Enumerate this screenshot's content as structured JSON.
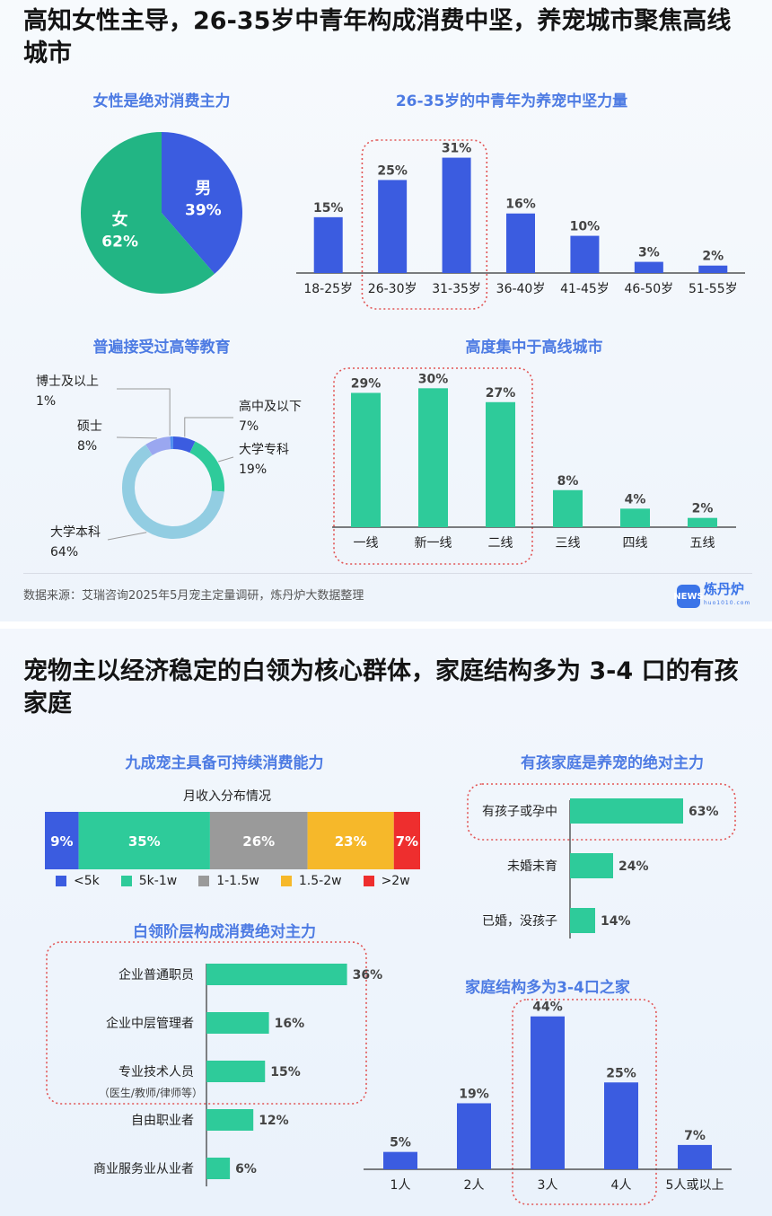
{
  "source": "数据来源：艾瑞咨询2025年5月宠主定量调研，炼丹炉大数据整理",
  "logo": {
    "text": "炼丹炉",
    "sub": "huo1010.com",
    "mark": "NEWS"
  },
  "colors": {
    "blue": "#3b5ce0",
    "green": "#2ecb9a",
    "gray": "#9a9a9a",
    "orange": "#f6b82a",
    "red": "#ee2e2e",
    "pie_green": "#22b584",
    "ring_light": "#92cde2",
    "ring_purple": "#9aa7f0",
    "accent": "#4d7be3",
    "highlight": "#e25555"
  },
  "panel1": {
    "title": "高知女性主导，26-35岁中青年构成消费中坚，养宠城市聚焦高线城市",
    "gender_title": "女性是绝对消费主力",
    "age_title": "26-35岁的中青年为养宠中坚力量",
    "edu_title": "普遍接受过高等教育",
    "city_title": "高度集中于高线城市"
  },
  "panel2": {
    "title": "宠物主以经济稳定的白领为核心群体，家庭结构多为 3-4 口的有孩家庭",
    "income_title": "九成宠主具备可持续消费能力",
    "income_subtitle": "月收入分布情况",
    "occupation_title": "白领阶层构成消费绝对主力",
    "kids_title": "有孩家庭是养宠的绝对主力",
    "family_title": "家庭结构多为3-4口之家"
  },
  "chart_data": [
    {
      "id": "gender",
      "type": "pie",
      "title": "女性是绝对消费主力",
      "slices": [
        {
          "label": "男",
          "value": 39,
          "text": "39%"
        },
        {
          "label": "女",
          "value": 62,
          "text": "62%"
        }
      ]
    },
    {
      "id": "age",
      "type": "bar",
      "title": "26-35岁的中青年为养宠中坚力量",
      "categories": [
        "18-25岁",
        "26-30岁",
        "31-35岁",
        "36-40岁",
        "41-45岁",
        "46-50岁",
        "51-55岁"
      ],
      "values": [
        15,
        25,
        31,
        16,
        10,
        3,
        2
      ],
      "labels": [
        "15%",
        "25%",
        "31%",
        "16%",
        "10%",
        "3%",
        "2%"
      ],
      "highlight": [
        1,
        2
      ],
      "ylim": [
        0,
        35
      ]
    },
    {
      "id": "education",
      "type": "pie",
      "title": "普遍接受过高等教育",
      "slices": [
        {
          "label": "高中及以下",
          "value": 7,
          "text": "7%"
        },
        {
          "label": "大学专科",
          "value": 19,
          "text": "19%"
        },
        {
          "label": "大学本科",
          "value": 64,
          "text": "64%"
        },
        {
          "label": "硕士",
          "value": 8,
          "text": "8%"
        },
        {
          "label": "博士及以上",
          "value": 1,
          "text": "1%"
        }
      ]
    },
    {
      "id": "city",
      "type": "bar",
      "title": "高度集中于高线城市",
      "categories": [
        "一线",
        "新一线",
        "二线",
        "三线",
        "四线",
        "五线"
      ],
      "values": [
        29,
        30,
        27,
        8,
        4,
        2
      ],
      "labels": [
        "29%",
        "30%",
        "27%",
        "8%",
        "4%",
        "2%"
      ],
      "highlight": [
        0,
        1,
        2
      ],
      "ylim": [
        0,
        32
      ]
    },
    {
      "id": "income",
      "type": "bar",
      "orientation": "stacked-horizontal",
      "title": "九成宠主具备可持续消费能力",
      "subtitle": "月收入分布情况",
      "categories": [
        "<5k",
        "5k-1w",
        "1-1.5w",
        "1.5-2w",
        ">2w"
      ],
      "values": [
        9,
        35,
        26,
        23,
        7
      ],
      "labels": [
        "9%",
        "35%",
        "26%",
        "23%",
        "7%"
      ]
    },
    {
      "id": "occupation",
      "type": "bar",
      "orientation": "horizontal",
      "title": "白领阶层构成消费绝对主力",
      "categories": [
        "企业普通职员",
        "企业中层管理者",
        "专业技术人员",
        "自由职业者",
        "商业服务业从业者"
      ],
      "note": "（医生/教师/律师等）",
      "values": [
        36,
        16,
        15,
        12,
        6
      ],
      "labels": [
        "36%",
        "16%",
        "15%",
        "12%",
        "6%"
      ],
      "highlight": [
        0,
        1,
        2
      ],
      "xlim": [
        0,
        40
      ]
    },
    {
      "id": "kids",
      "type": "bar",
      "orientation": "horizontal",
      "title": "有孩家庭是养宠的绝对主力",
      "categories": [
        "有孩子或孕中",
        "未婚未育",
        "已婚，没孩子"
      ],
      "values": [
        63,
        24,
        14
      ],
      "labels": [
        "63%",
        "24%",
        "14%"
      ],
      "highlight": [
        0
      ],
      "xlim": [
        0,
        70
      ]
    },
    {
      "id": "family",
      "type": "bar",
      "title": "家庭结构多为3-4口之家",
      "categories": [
        "1人",
        "2人",
        "3人",
        "4人",
        "5人或以上"
      ],
      "values": [
        5,
        19,
        44,
        25,
        7
      ],
      "labels": [
        "5%",
        "19%",
        "44%",
        "25%",
        "7%"
      ],
      "highlight": [
        2,
        3
      ],
      "ylim": [
        0,
        46
      ]
    }
  ]
}
